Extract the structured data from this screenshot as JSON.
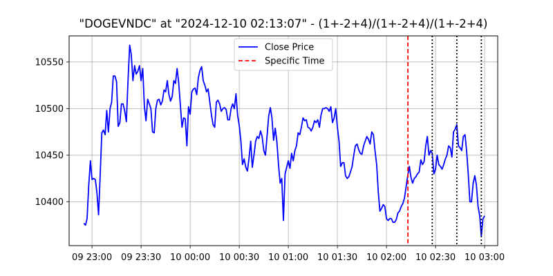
{
  "chart_data": {
    "type": "line",
    "title": "\"DOGEVNDC\" at \"2024-12-10 02:13:07\" - (1+-2+4)/(1+-2+4)/(1+-2+4)",
    "xlabel": "",
    "ylabel": "",
    "x_start": "2024-12-09 22:55",
    "x_step_minutes": 1,
    "xlim": [
      "2024-12-09 22:46",
      "2024-12-10 03:08"
    ],
    "ylim": [
      10353,
      10578
    ],
    "grid": true,
    "legend_position": "top-center",
    "x_ticks": [
      {
        "time": "2024-12-09 23:00",
        "label": "09 23:00"
      },
      {
        "time": "2024-12-09 23:30",
        "label": "09 23:30"
      },
      {
        "time": "2024-12-10 00:00",
        "label": "10 00:00"
      },
      {
        "time": "2024-12-10 00:30",
        "label": "10 00:30"
      },
      {
        "time": "2024-12-10 01:00",
        "label": "10 01:00"
      },
      {
        "time": "2024-12-10 01:30",
        "label": "10 01:30"
      },
      {
        "time": "2024-12-10 02:00",
        "label": "10 02:00"
      },
      {
        "time": "2024-12-10 02:30",
        "label": "10 02:30"
      },
      {
        "time": "2024-12-10 03:00",
        "label": "10 03:00"
      }
    ],
    "y_ticks": [
      10400,
      10450,
      10500,
      10550
    ],
    "series": [
      {
        "name": "Close Price",
        "color": "#0000ff",
        "style": "solid",
        "values": [
          10377,
          10375,
          10382,
          10418,
          10444,
          10424,
          10425,
          10424,
          10410,
          10386,
          10430,
          10474,
          10477,
          10472,
          10498,
          10475,
          10500,
          10507,
          10535,
          10535,
          10529,
          10481,
          10485,
          10505,
          10505,
          10497,
          10486,
          10530,
          10568,
          10558,
          10530,
          10546,
          10537,
          10540,
          10546,
          10530,
          10543,
          10502,
          10487,
          10510,
          10505,
          10500,
          10475,
          10474,
          10500,
          10509,
          10510,
          10504,
          10508,
          10520,
          10518,
          10530,
          10515,
          10508,
          10513,
          10530,
          10527,
          10543,
          10528,
          10504,
          10480,
          10490,
          10489,
          10460,
          10502,
          10494,
          10518,
          10521,
          10522,
          10515,
          10533,
          10541,
          10545,
          10530,
          10525,
          10518,
          10521,
          10507,
          10493,
          10483,
          10480,
          10507,
          10509,
          10505,
          10497,
          10500,
          10501,
          10499,
          10488,
          10488,
          10500,
          10505,
          10500,
          10516,
          10493,
          10482,
          10465,
          10440,
          10446,
          10437,
          10433,
          10447,
          10465,
          10437,
          10450,
          10465,
          10470,
          10468,
          10476,
          10470,
          10455,
          10450,
          10470,
          10492,
          10501,
          10490,
          10466,
          10479,
          10465,
          10440,
          10420,
          10425,
          10380,
          10430,
          10437,
          10444,
          10436,
          10452,
          10444,
          10455,
          10460,
          10474,
          10472,
          10480,
          10490,
          10487,
          10488,
          10480,
          10479,
          10476,
          10480,
          10487,
          10485,
          10488,
          10480,
          10493,
          10500,
          10500,
          10501,
          10500,
          10497,
          10502,
          10485,
          10490,
          10500,
          10480,
          10465,
          10438,
          10442,
          10442,
          10428,
          10425,
          10427,
          10432,
          10438,
          10450,
          10460,
          10462,
          10456,
          10452,
          10451,
          10460,
          10465,
          10470,
          10467,
          10462,
          10475,
          10472,
          10455,
          10440,
          10410,
          10390,
          10393,
          10397,
          10395,
          10382,
          10380,
          10382,
          10382,
          10378,
          10378,
          10381,
          10388,
          10390,
          10395,
          10398,
          10404,
          10416,
          10428,
          10438,
          10426,
          10420,
          10425,
          10427,
          10430,
          10432,
          10445,
          10440,
          10443,
          10460,
          10470,
          10450,
          10455,
          10452,
          10430,
          10435,
          10450,
          10440,
          10438,
          10435,
          10440,
          10446,
          10450,
          10460,
          10458,
          10448,
          10475,
          10478,
          10483,
          10460,
          10458,
          10455,
          10470,
          10472,
          10455,
          10430,
          10400,
          10400,
          10420,
          10428,
          10418,
          10395,
          10385,
          10363,
          10382,
          10385
        ]
      }
    ],
    "markers": [
      {
        "name": "Specific Time",
        "time": "2024-12-10 02:13:07",
        "color": "#ff0000",
        "style": "dashed"
      },
      {
        "time": "2024-12-10 02:28",
        "color": "#000000",
        "style": "dotted"
      },
      {
        "time": "2024-12-10 02:43",
        "color": "#000000",
        "style": "dotted"
      },
      {
        "time": "2024-12-10 02:58",
        "color": "#000000",
        "style": "dotted"
      }
    ]
  }
}
